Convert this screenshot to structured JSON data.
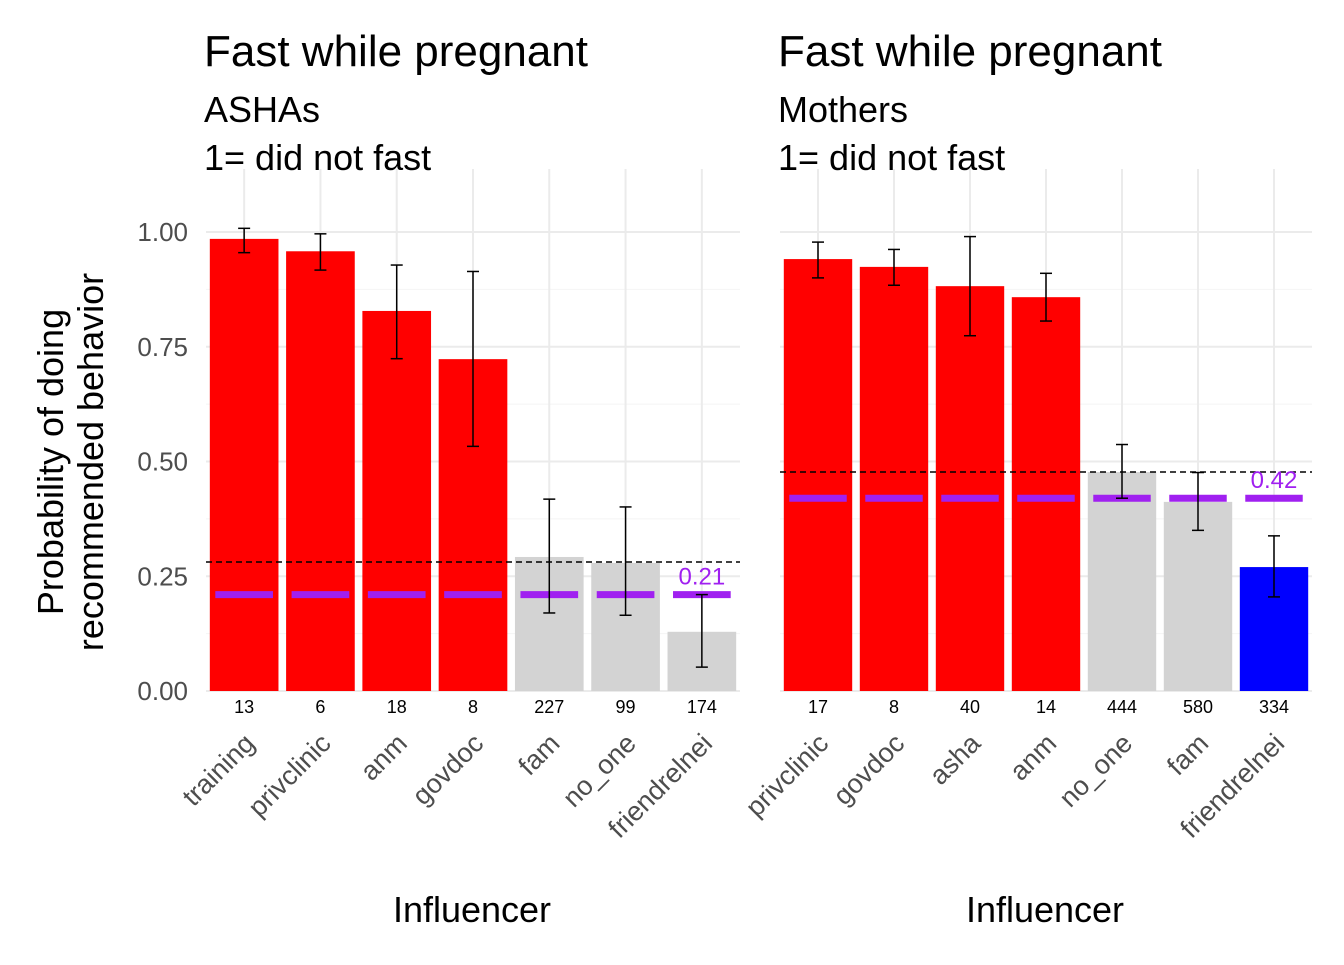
{
  "chart_data": [
    {
      "type": "bar",
      "title": "Fast while pregnant",
      "subtitle": "ASHAs",
      "subtitle2": "1= did not fast",
      "xlabel": "Influencer",
      "ylabel": "Probability of doing recommended behavior",
      "ylim": [
        0,
        1.05
      ],
      "yticks": [
        "0.00",
        "0.25",
        "0.50",
        "0.75",
        "1.00"
      ],
      "categories": [
        "training",
        "privclinic",
        "anm",
        "govdoc",
        "fam",
        "no_one",
        "friendrelnei"
      ],
      "values": [
        0.985,
        0.958,
        0.828,
        0.723,
        0.292,
        0.279,
        0.129
      ],
      "err_low": [
        0.955,
        0.917,
        0.724,
        0.533,
        0.17,
        0.165,
        0.052
      ],
      "err_high": [
        1.008,
        0.996,
        0.928,
        0.914,
        0.418,
        0.401,
        0.21
      ],
      "n": [
        "13",
        "6",
        "18",
        "8",
        "227",
        "99",
        "174"
      ],
      "bar_colors": [
        "#ff0000",
        "#ff0000",
        "#ff0000",
        "#ff0000",
        "#d3d3d3",
        "#d3d3d3",
        "#d3d3d3"
      ],
      "reference_line": 0.281,
      "purple_value": 0.21,
      "purple_label": "0.21",
      "grid": true
    },
    {
      "type": "bar",
      "title": "Fast while pregnant",
      "subtitle": "Mothers",
      "subtitle2": "1= did not fast",
      "xlabel": "Influencer",
      "ylabel": "",
      "ylim": [
        0,
        1.05
      ],
      "yticks": [],
      "categories": [
        "privclinic",
        "govdoc",
        "asha",
        "anm",
        "no_one",
        "fam",
        "friendrelnei"
      ],
      "values": [
        0.941,
        0.924,
        0.882,
        0.858,
        0.477,
        0.412,
        0.27
      ],
      "err_low": [
        0.9,
        0.884,
        0.774,
        0.806,
        0.42,
        0.35,
        0.205
      ],
      "err_high": [
        0.978,
        0.962,
        0.99,
        0.91,
        0.537,
        0.476,
        0.338
      ],
      "n": [
        "17",
        "8",
        "40",
        "14",
        "444",
        "580",
        "334"
      ],
      "bar_colors": [
        "#ff0000",
        "#ff0000",
        "#ff0000",
        "#ff0000",
        "#d3d3d3",
        "#d3d3d3",
        "#0000ff"
      ],
      "reference_line": 0.477,
      "purple_value": 0.42,
      "purple_label": "0.42",
      "grid": true
    }
  ],
  "colors": {
    "purple": "#a020f0",
    "grid": "#ebebeb"
  }
}
